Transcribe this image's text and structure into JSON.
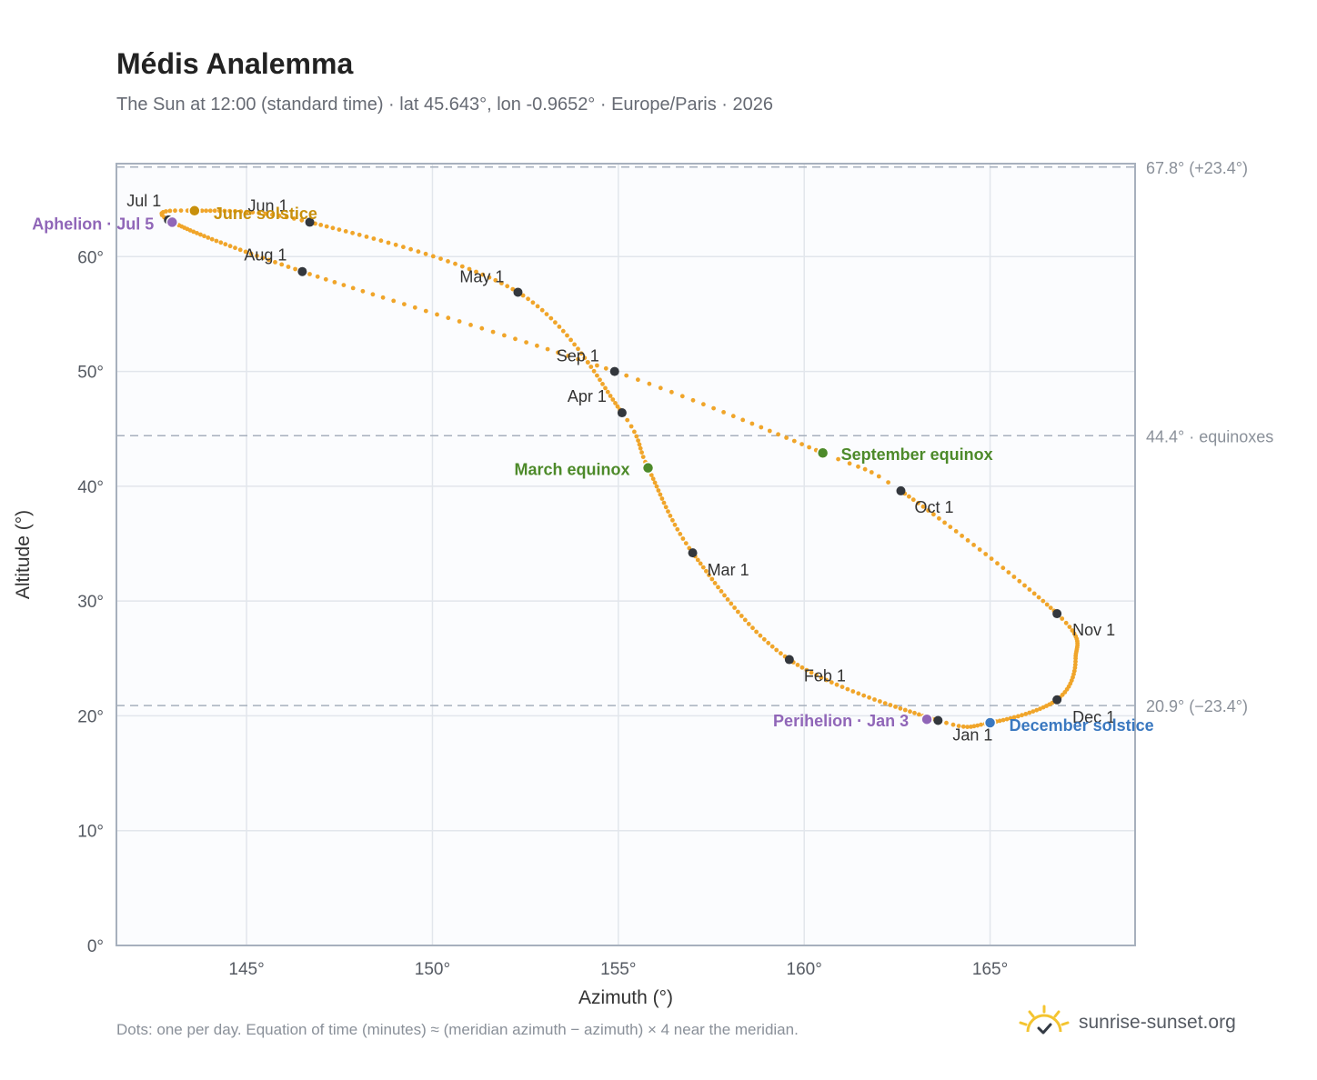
{
  "header": {
    "title": "Médis Analemma",
    "subtitle": "The Sun at 12:00 (standard time) · lat 45.643°, lon -0.9652° · Europe/Paris · 2026"
  },
  "footer": {
    "note": "Dots: one per day. Equation of time (minutes) ≈ (meridian azimuth − azimuth) × 4 near the meridian.",
    "brand": "sunrise-sunset.org"
  },
  "colors": {
    "curve": "#f0a52a",
    "month_dot": "#33373d",
    "solstice_june": "#c8900c",
    "solstice_december": "#3a78c0",
    "equinox": "#4d8a2a",
    "apsis": "#9066b8",
    "grid": "#e2e6ec",
    "plot_bg": "#fbfcfe",
    "frame": "#a7b0bd",
    "reference_line": "#a7b0bd"
  },
  "chart_data": {
    "type": "scatter",
    "xlabel": "Azimuth (°)",
    "ylabel": "Altitude (°)",
    "xlim": [
      141.5,
      168.9
    ],
    "ylim": [
      0,
      68.1
    ],
    "xticks": [
      {
        "value": 145,
        "label": "145°"
      },
      {
        "value": 150,
        "label": "150°"
      },
      {
        "value": 155,
        "label": "155°"
      },
      {
        "value": 160,
        "label": "160°"
      },
      {
        "value": 165,
        "label": "165°"
      }
    ],
    "yticks": [
      {
        "value": 0,
        "label": "0°"
      },
      {
        "value": 10,
        "label": "10°"
      },
      {
        "value": 20,
        "label": "20°"
      },
      {
        "value": 30,
        "label": "30°"
      },
      {
        "value": 40,
        "label": "40°"
      },
      {
        "value": 50,
        "label": "50°"
      },
      {
        "value": 60,
        "label": "60°"
      }
    ],
    "grid": true,
    "reference_lines": [
      {
        "y": 67.8,
        "label": "67.8° (+23.4°)"
      },
      {
        "y": 44.4,
        "label": "44.4° · equinoxes"
      },
      {
        "y": 20.9,
        "label": "20.9° (−23.4°)"
      }
    ],
    "months": [
      {
        "label": "Jan 1",
        "az": 163.6,
        "alt": 19.6
      },
      {
        "label": "Feb 1",
        "az": 159.6,
        "alt": 24.9
      },
      {
        "label": "Mar 1",
        "az": 157.0,
        "alt": 34.2
      },
      {
        "label": "Apr 1",
        "az": 155.1,
        "alt": 46.4
      },
      {
        "label": "May 1",
        "az": 152.3,
        "alt": 56.9
      },
      {
        "label": "Jun 1",
        "az": 146.7,
        "alt": 63.0
      },
      {
        "label": "Jul 1",
        "az": 142.9,
        "alt": 63.2
      },
      {
        "label": "Aug 1",
        "az": 146.5,
        "alt": 58.7
      },
      {
        "label": "Sep 1",
        "az": 154.9,
        "alt": 50.0
      },
      {
        "label": "Oct 1",
        "az": 162.6,
        "alt": 39.6
      },
      {
        "label": "Nov 1",
        "az": 166.8,
        "alt": 28.9
      },
      {
        "label": "Dec 1",
        "az": 166.8,
        "alt": 21.4
      }
    ],
    "events": [
      {
        "key": "december_solstice",
        "label": "December solstice",
        "az": 165.0,
        "alt": 19.4
      },
      {
        "key": "june_solstice",
        "label": "June solstice",
        "az": 143.6,
        "alt": 64.0
      },
      {
        "key": "march_equinox",
        "label": "March equinox",
        "az": 155.8,
        "alt": 41.6
      },
      {
        "key": "september_equinox",
        "label": "September equinox",
        "az": 160.5,
        "alt": 42.9
      },
      {
        "key": "perihelion",
        "label": "Perihelion · Jan 3",
        "az": 163.3,
        "alt": 19.7
      },
      {
        "key": "aphelion",
        "label": "Aphelion · Jul 5",
        "az": 143.0,
        "alt": 63.0
      }
    ]
  }
}
